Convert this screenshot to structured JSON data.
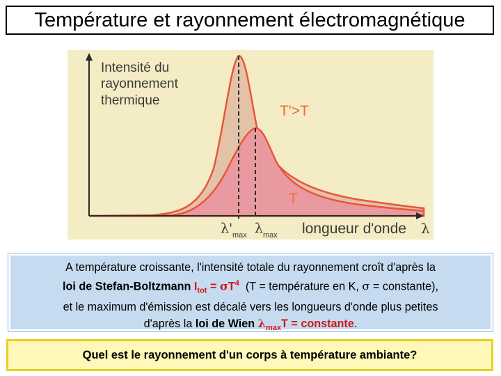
{
  "title": "Température et rayonnement électromagnétique",
  "figure": {
    "ylabel_lines": [
      "Intensité du",
      "rayonnement",
      "thermique"
    ],
    "xlabel": "longueur d'onde",
    "xlabel_symbol": "λ",
    "curve_hot_label": "T'>T",
    "curve_cool_label": "T",
    "lambda_max_hot": "λ'",
    "lambda_max_cool": "λ",
    "max_sub": "max",
    "colors": {
      "background": "#f3ecc4",
      "hot_fill": "#e3c3a8",
      "cool_fill": "#e99aa0",
      "curve": "#e8563a",
      "axis": "#2a2a2a",
      "label": "#ee6a3c"
    }
  },
  "info": {
    "p1": "A température croissante, l'intensité totale du rayonnement croît d'après la",
    "law1_name": "loi de Stefan-Boltzmann",
    "law1_I": "I",
    "law1_tot": "tot",
    "law1_eq": " = ",
    "law1_sigma": "σ",
    "law1_T": "T",
    "law1_exp": "4",
    "p2": "  (T = température en K, ",
    "p2_sigma": "σ",
    "p2_end": " = constante),",
    "p3": "et le maximum d'émission est décalé vers les longueurs d'onde plus petites",
    "p4": "d'après la ",
    "law2_name": "loi de Wien",
    "law2_lambda": "λ",
    "law2_max": "max",
    "law2_rest": "T = constante",
    "p4_end": "."
  },
  "question": "Quel est le rayonnement d'un corps à température ambiante?"
}
